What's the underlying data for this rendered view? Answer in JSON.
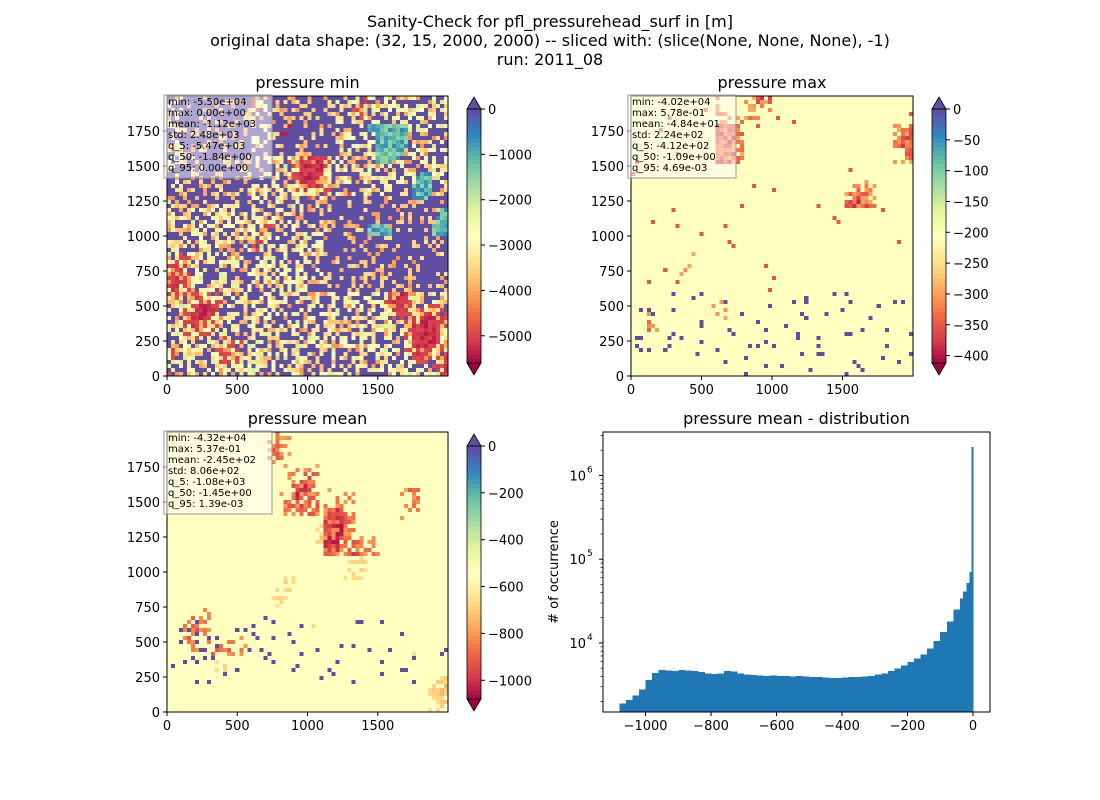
{
  "figure": {
    "title_lines": [
      "Sanity-Check for pfl_pressurehead_surf in [m]",
      "original data shape: (32, 15, 2000, 2000) -- sliced with: (slice(None, None, None), -1)",
      "run: 2011_08"
    ]
  },
  "chart_data": [
    {
      "type": "heatmap",
      "title": "pressure min",
      "x_ticks": [
        0,
        500,
        1000,
        1500
      ],
      "y_ticks": [
        0,
        250,
        500,
        750,
        1000,
        1250,
        1500,
        1750
      ],
      "xlim": [
        0,
        2000
      ],
      "ylim": [
        0,
        2000
      ],
      "colormap": "Spectral",
      "colorbar": {
        "ticks": [
          0,
          -1000,
          -2000,
          -3000,
          -4000,
          -5000
        ],
        "range": [
          -5600,
          0
        ],
        "extend": "both"
      },
      "stats": [
        "min: -5.50e+04",
        "max: 0.00e+00",
        "mean: -1.12e+03",
        "std: 2.48e+03",
        "q_5: -5.47e+03",
        "q_50: -1.84e+00",
        "q_95: 0.00e+00"
      ]
    },
    {
      "type": "heatmap",
      "title": "pressure max",
      "x_ticks": [
        0,
        500,
        1000,
        1500
      ],
      "y_ticks": [
        0,
        250,
        500,
        750,
        1000,
        1250,
        1500,
        1750
      ],
      "xlim": [
        0,
        2000
      ],
      "ylim": [
        0,
        2000
      ],
      "colormap": "Spectral",
      "colorbar": {
        "ticks": [
          0,
          -50,
          -100,
          -150,
          -200,
          -250,
          -300,
          -350,
          -400
        ],
        "range": [
          -412,
          0
        ],
        "extend": "both"
      },
      "stats": [
        "min: -4.02e+04",
        "max: 5.78e-01",
        "mean: -4.84e+01",
        "std: 2.24e+02",
        "q_5: -4.12e+02",
        "q_50: -1.09e+00",
        "q_95: 4.69e-03"
      ]
    },
    {
      "type": "heatmap",
      "title": "pressure mean",
      "x_ticks": [
        0,
        500,
        1000,
        1500
      ],
      "y_ticks": [
        0,
        250,
        500,
        750,
        1000,
        1250,
        1500,
        1750
      ],
      "xlim": [
        0,
        2000
      ],
      "ylim": [
        0,
        2000
      ],
      "colormap": "Spectral",
      "colorbar": {
        "ticks": [
          0,
          -200,
          -400,
          -600,
          -800,
          -1000
        ],
        "range": [
          -1080,
          0
        ],
        "extend": "both"
      },
      "stats": [
        "min: -4.32e+04",
        "max: 5.37e-01",
        "mean: -2.45e+02",
        "std: 8.06e+02",
        "q_5: -1.08e+03",
        "q_50: -1.45e+00",
        "q_95: 1.39e-03"
      ]
    },
    {
      "type": "bar",
      "title": "pressure mean - distribution",
      "ylabel": "# of occurrence",
      "xlabel": "",
      "x_ticks": [
        -1000,
        -800,
        -600,
        -400,
        -200,
        0
      ],
      "y_ticks": [
        10000,
        100000,
        1000000
      ],
      "y_tick_labels": [
        "10",
        "10",
        "10"
      ],
      "y_tick_exponents": [
        "4",
        "5",
        "6"
      ],
      "xlim": [
        -1130,
        52
      ],
      "ylim": [
        1500,
        3300000
      ],
      "y_scale": "log",
      "color": "#1f77b4",
      "bins": [
        [
          -1080,
          1900
        ],
        [
          -1060,
          2100
        ],
        [
          -1040,
          2350
        ],
        [
          -1020,
          2800
        ],
        [
          -1000,
          3600
        ],
        [
          -980,
          4400
        ],
        [
          -960,
          4750
        ],
        [
          -940,
          4700
        ],
        [
          -920,
          4650
        ],
        [
          -900,
          4750
        ],
        [
          -880,
          4700
        ],
        [
          -860,
          4650
        ],
        [
          -840,
          4500
        ],
        [
          -820,
          4350
        ],
        [
          -800,
          4250
        ],
        [
          -780,
          4350
        ],
        [
          -760,
          4650
        ],
        [
          -740,
          4550
        ],
        [
          -720,
          4350
        ],
        [
          -700,
          4200
        ],
        [
          -680,
          4150
        ],
        [
          -660,
          4100
        ],
        [
          -640,
          4050
        ],
        [
          -620,
          4100
        ],
        [
          -600,
          4050
        ],
        [
          -580,
          4050
        ],
        [
          -560,
          4000
        ],
        [
          -540,
          4050
        ],
        [
          -520,
          4000
        ],
        [
          -500,
          3950
        ],
        [
          -480,
          3900
        ],
        [
          -460,
          3850
        ],
        [
          -440,
          3800
        ],
        [
          -420,
          3800
        ],
        [
          -400,
          3850
        ],
        [
          -380,
          3900
        ],
        [
          -360,
          3950
        ],
        [
          -340,
          4000
        ],
        [
          -320,
          4050
        ],
        [
          -300,
          4200
        ],
        [
          -280,
          4350
        ],
        [
          -260,
          4600
        ],
        [
          -240,
          4950
        ],
        [
          -220,
          5400
        ],
        [
          -200,
          5900
        ],
        [
          -180,
          6500
        ],
        [
          -160,
          7300
        ],
        [
          -140,
          8600
        ],
        [
          -120,
          10500
        ],
        [
          -100,
          13500
        ],
        [
          -80,
          18000
        ],
        [
          -60,
          25000
        ],
        [
          -40,
          34000
        ],
        [
          -30,
          41000
        ],
        [
          -20,
          52000
        ],
        [
          -10,
          70000
        ],
        [
          -4,
          2200000
        ]
      ]
    }
  ]
}
